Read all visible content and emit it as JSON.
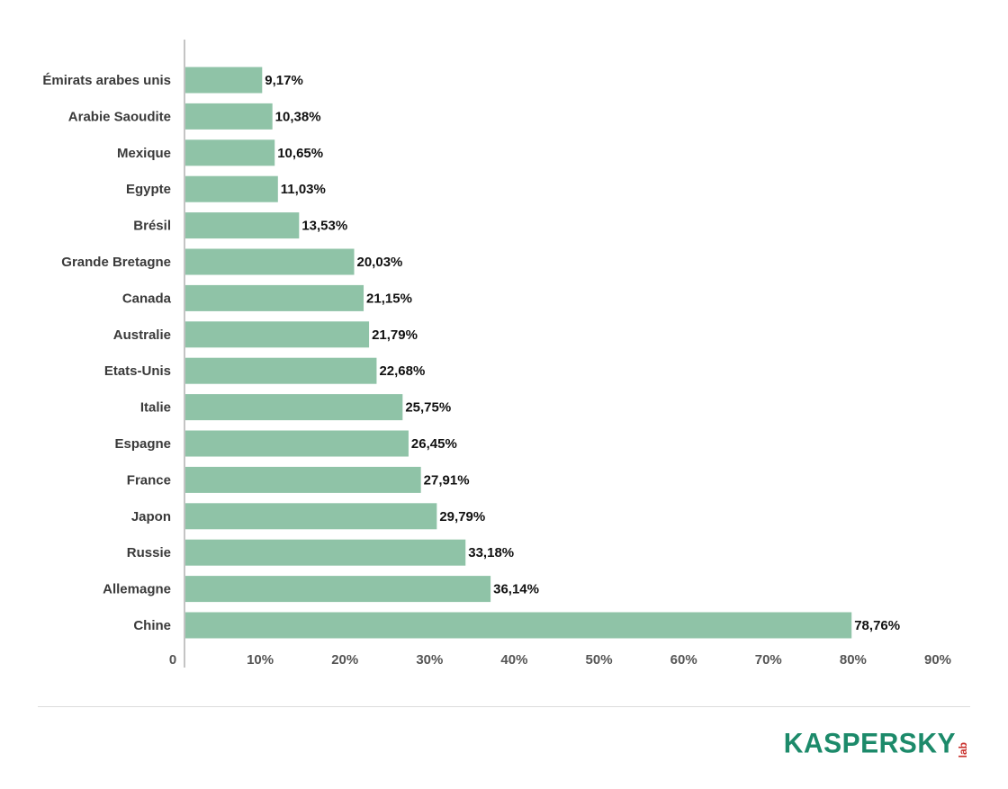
{
  "chart_data": {
    "type": "bar",
    "orientation": "horizontal",
    "categories": [
      "Émirats arabes unis",
      "Arabie Saoudite",
      "Mexique",
      "Egypte",
      "Brésil",
      "Grande Bretagne",
      "Canada",
      "Australie",
      "Etats-Unis",
      "Italie",
      "Espagne",
      "France",
      "Japon",
      "Russie",
      "Allemagne",
      "Chine"
    ],
    "values": [
      9.17,
      10.38,
      10.65,
      11.03,
      13.53,
      20.03,
      21.15,
      21.79,
      22.68,
      25.75,
      26.45,
      27.91,
      29.79,
      33.18,
      36.14,
      78.76
    ],
    "value_labels": [
      "9,17%",
      "10,38%",
      "10,65%",
      "11,03%",
      "13,53%",
      "20,03%",
      "21,15%",
      "21,79%",
      "22,68%",
      "25,75%",
      "26,45%",
      "27,91%",
      "29,79%",
      "33,18%",
      "36,14%",
      "78,76%"
    ],
    "xlim": [
      0,
      90
    ],
    "xticks": [
      0,
      10,
      20,
      30,
      40,
      50,
      60,
      70,
      80,
      90
    ],
    "xtick_labels": [
      "0",
      "10%",
      "20%",
      "30%",
      "40%",
      "50%",
      "60%",
      "70%",
      "80%",
      "90%"
    ],
    "bar_color": "#8fc3a7",
    "grid": false,
    "legend": "none"
  },
  "logo": {
    "text": "KASPERSKY",
    "sub": "lab",
    "color": "#1c8a6a",
    "sub_color": "#c9302c"
  }
}
